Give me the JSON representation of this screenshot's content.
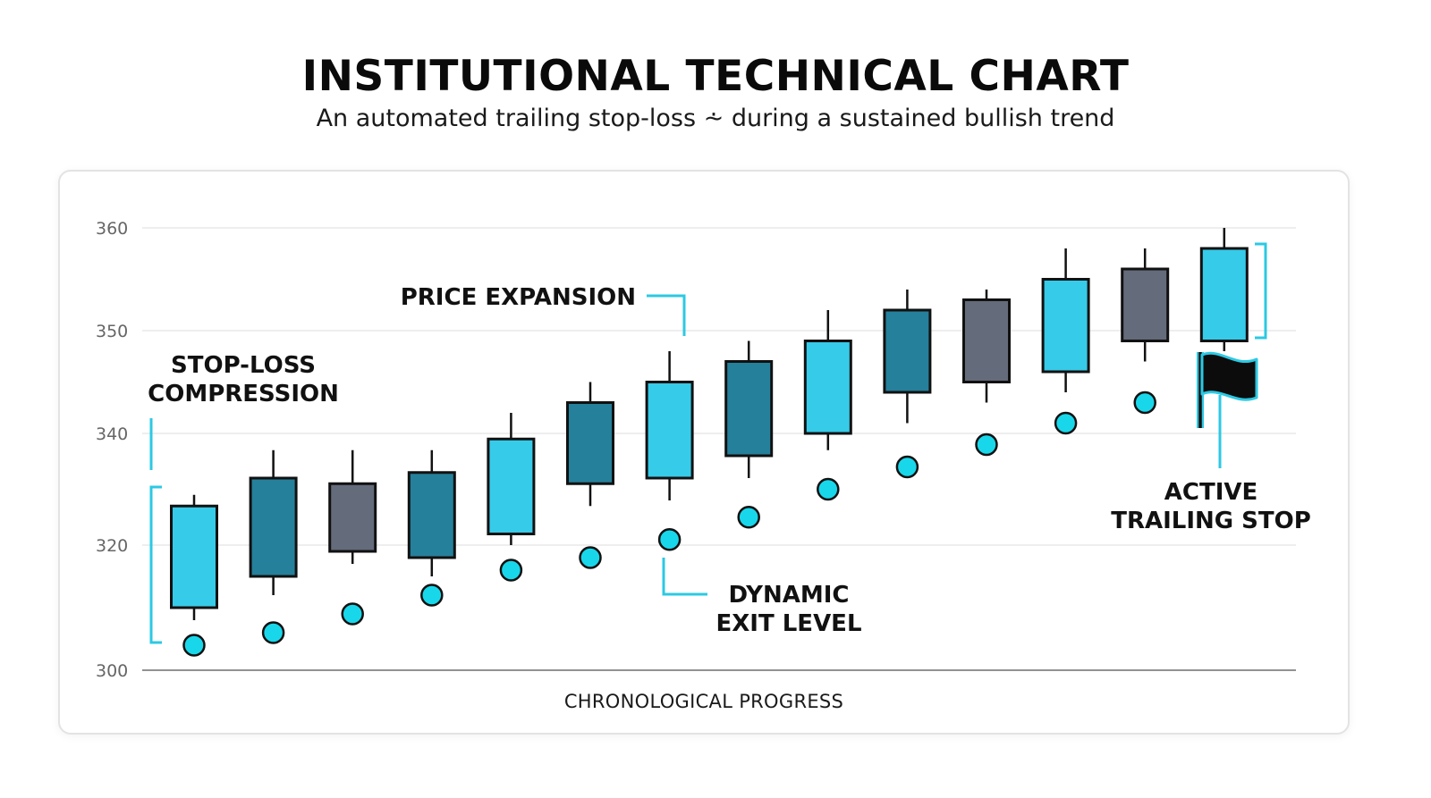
{
  "title": "INSTITUTIONAL TECHNICAL CHART",
  "subtitle": "An automated trailing stop-loss ⩪ during a sustained bullish trend",
  "colors": {
    "bright": "#36cbe9",
    "dark": "#25809b",
    "gray": "#646b7a",
    "stop": "#19d7ea",
    "accent": "#2cc9e3"
  },
  "chart_data": {
    "type": "candlestick",
    "title": "INSTITUTIONAL TECHNICAL CHART",
    "subtitle": "An automated trailing stop-loss ⩪ during a sustained bullish trend",
    "xlabel": "CHRONOLOGICAL PROGRESS",
    "ylabel": "",
    "y_ticks": [
      "300",
      "320",
      "340",
      "350",
      "360"
    ],
    "grid": true,
    "candles": [
      {
        "open": 310,
        "high": 329,
        "low": 308,
        "close": 327,
        "color": "bright"
      },
      {
        "open": 315,
        "high": 337,
        "low": 312,
        "close": 332,
        "color": "dark"
      },
      {
        "open": 319,
        "high": 337,
        "low": 317,
        "close": 331,
        "color": "gray"
      },
      {
        "open": 318,
        "high": 337,
        "low": 315,
        "close": 333,
        "color": "dark"
      },
      {
        "open": 322,
        "high": 342,
        "low": 320,
        "close": 339,
        "color": "bright"
      },
      {
        "open": 331,
        "high": 345,
        "low": 327,
        "close": 343,
        "color": "dark"
      },
      {
        "open": 332,
        "high": 348,
        "low": 328,
        "close": 345,
        "color": "bright"
      },
      {
        "open": 336,
        "high": 349,
        "low": 332,
        "close": 347,
        "color": "dark"
      },
      {
        "open": 340,
        "high": 352,
        "low": 337,
        "close": 349,
        "color": "bright"
      },
      {
        "open": 344,
        "high": 354,
        "low": 341,
        "close": 352,
        "color": "dark"
      },
      {
        "open": 345,
        "high": 354,
        "low": 343,
        "close": 353,
        "color": "gray"
      },
      {
        "open": 346,
        "high": 358,
        "low": 344,
        "close": 355,
        "color": "bright"
      },
      {
        "open": 349,
        "high": 358,
        "low": 347,
        "close": 356,
        "color": "gray"
      },
      {
        "open": 349,
        "high": 360,
        "low": 348,
        "close": 358,
        "color": "bright"
      }
    ],
    "trailing_stop": [
      304,
      306,
      309,
      312,
      316,
      318,
      321,
      325,
      330,
      334,
      338,
      341,
      343,
      null
    ],
    "annotations": [
      {
        "text": [
          "STOP-LOSS",
          "COMPRESSION"
        ]
      },
      {
        "text": [
          "PRICE EXPANSION"
        ]
      },
      {
        "text": [
          "DYNAMIC",
          "EXIT LEVEL"
        ]
      },
      {
        "text": [
          "ACTIVE",
          "TRAILING STOP"
        ]
      }
    ]
  }
}
